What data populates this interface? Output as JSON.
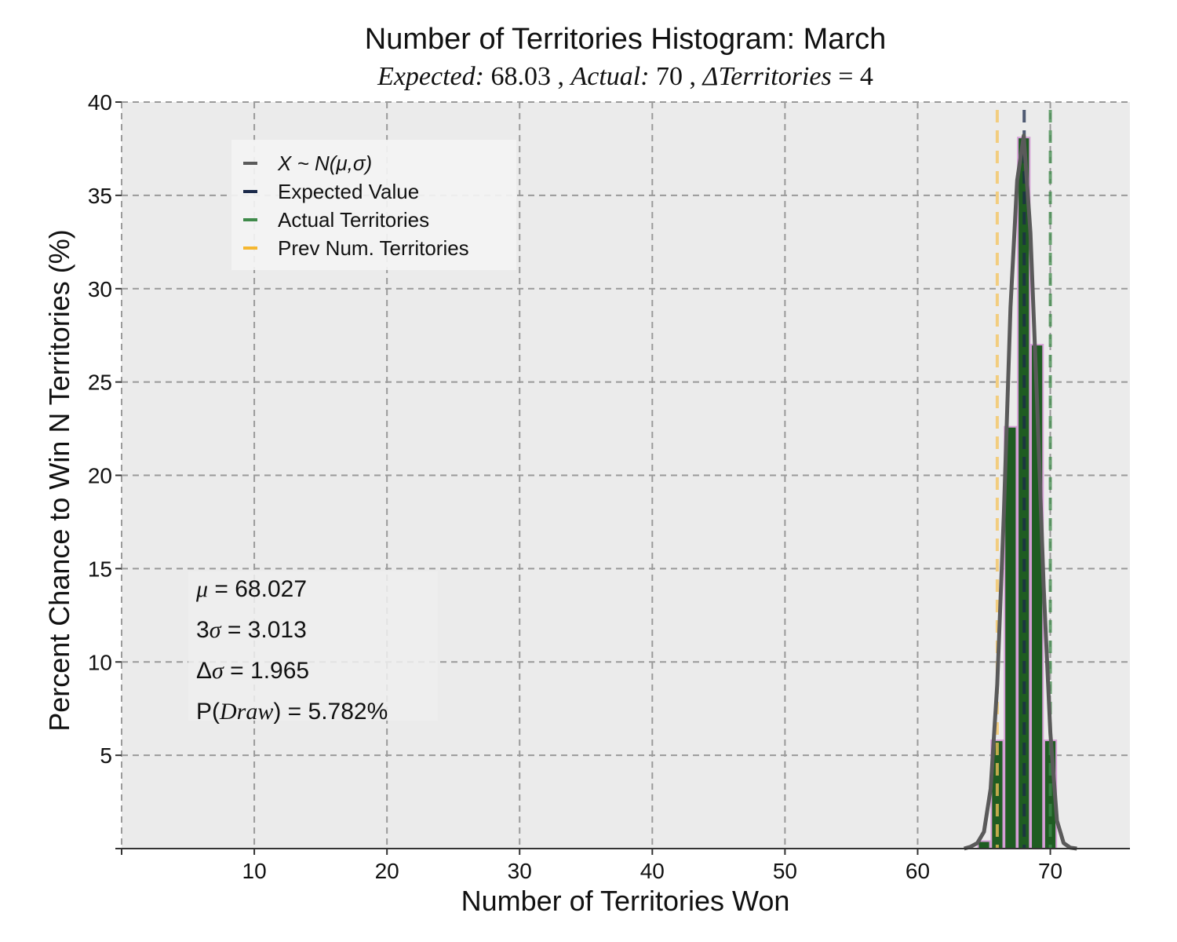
{
  "chart_data": {
    "type": "bar",
    "title": "Number of Territories Histogram: March",
    "subtitle": {
      "expected_label": "Expected:",
      "expected_value": "68.03",
      "actual_label": "Actual:",
      "actual_value": "70",
      "delta_label": "ΔTerritories",
      "delta_value": "= 4"
    },
    "xlabel": "Number of Territories Won",
    "ylabel": "Percent Chance to Win N Territories (%)",
    "xlim": [
      0,
      76
    ],
    "ylim": [
      0,
      40
    ],
    "xticks": [
      10,
      20,
      30,
      40,
      50,
      60,
      70
    ],
    "yticks": [
      5,
      10,
      15,
      20,
      25,
      30,
      35,
      40
    ],
    "grid": true,
    "legend_placement": "upper-left",
    "bars": {
      "x": [
        65,
        66,
        67,
        68,
        69,
        70
      ],
      "values": [
        0.4,
        5.8,
        22.6,
        38.1,
        27.0,
        5.8
      ],
      "fill": "#1f5c22",
      "edge": "#d59fd6"
    },
    "normal_curve": {
      "name": "X ~ N(μ,σ)",
      "color": "#5a5a5a",
      "x": [
        63.5,
        64,
        64.5,
        65,
        65.5,
        66,
        66.5,
        67,
        67.5,
        68,
        68.5,
        69,
        69.5,
        70,
        70.5,
        71,
        71.5,
        72
      ],
      "y": [
        0.0,
        0.1,
        0.3,
        0.9,
        3.2,
        8.8,
        18.0,
        29.0,
        35.8,
        38.2,
        33.0,
        24.0,
        14.0,
        6.2,
        1.5,
        0.3,
        0.05,
        0.0
      ]
    },
    "vlines": [
      {
        "name": "Expected Value",
        "x": 68.03,
        "color": "#1b2a4a"
      },
      {
        "name": "Actual Territories",
        "x": 70,
        "color": "#3f8a4a"
      },
      {
        "name": "Prev Num. Territories",
        "x": 66,
        "color": "#f5c35c"
      }
    ],
    "legend": [
      {
        "label": "X ~ N(μ,σ)",
        "color": "#5a5a5a"
      },
      {
        "label": "Expected Value",
        "color": "#1b2a4a"
      },
      {
        "label": "Actual Territories",
        "color": "#3f8a4a"
      },
      {
        "label": "Prev Num. Territories",
        "color": "#f5b730"
      }
    ],
    "stats": {
      "mu_symbol": "μ",
      "mu_value": " = 68.027",
      "three_sigma_prefix": "3",
      "sigma_symbol": "σ",
      "three_sigma_value": " = 3.013",
      "delta_prefix": "Δ",
      "delta_sigma_value": " = 1.965",
      "p_prefix": "P(",
      "p_var": "Draw",
      "p_value": ") = 5.782%"
    },
    "plot_background": "#ebebeb"
  }
}
